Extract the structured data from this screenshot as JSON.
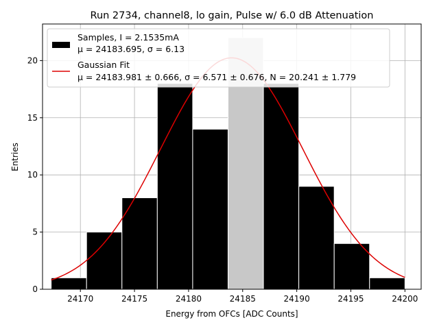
{
  "chart_data": {
    "type": "bar",
    "title": "Run 2734, channel8, lo gain, Pulse w/ 6.0 dB Attenuation",
    "xlabel": "Energy from OFCs [ADC Counts]",
    "ylabel": "Entries",
    "xlim": [
      24166.5,
      24201.5
    ],
    "ylim": [
      0,
      23.2
    ],
    "xticks": [
      24170,
      24175,
      24180,
      24185,
      24190,
      24195,
      24200
    ],
    "yticks": [
      0,
      5,
      10,
      15,
      20
    ],
    "grid": true,
    "legend_position": "top-left",
    "histogram": {
      "bin_edges": [
        24167.3,
        24170.57,
        24173.84,
        24177.11,
        24180.38,
        24183.65,
        24186.92,
        24190.19,
        24193.46,
        24196.73,
        24200.0
      ],
      "counts": [
        1,
        5,
        8,
        18,
        14,
        22,
        18,
        9,
        4,
        1
      ],
      "highlighted_bin_index": 5,
      "bar_color": "#000000",
      "highlight_color": "#c8c8c8"
    },
    "gaussian_fit": {
      "mu": 24183.981,
      "sigma": 6.571,
      "N": 20.241,
      "x_range": [
        24167.3,
        24200.0
      ],
      "color": "#dd0000"
    },
    "legend": {
      "samples_line1": "Samples, I = 2.1535mA",
      "samples_line2": "μ = 24183.695, σ = 6.13",
      "fit_line1": "Gaussian Fit",
      "fit_line2": "μ = 24183.981 ± 0.666, σ = 6.571 ± 0.676, N = 20.241 ± 1.779"
    }
  }
}
